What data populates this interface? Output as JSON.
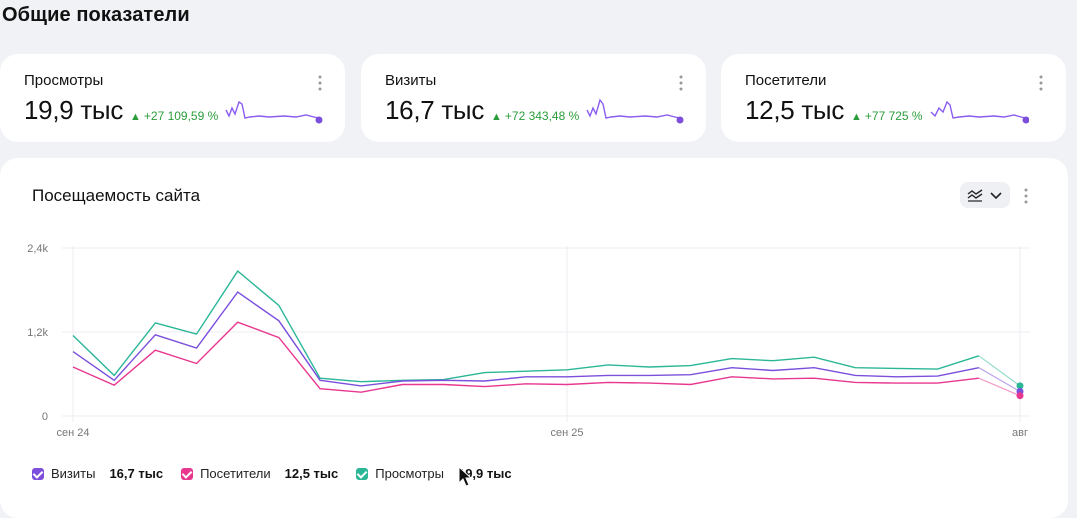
{
  "page": {
    "title": "Общие показатели"
  },
  "kpis": [
    {
      "label": "Просмотры",
      "value": "19,9 тыс",
      "delta": "+27 109,59 %"
    },
    {
      "label": "Визиты",
      "value": "16,7 тыс",
      "delta": "+72 343,48 %"
    },
    {
      "label": "Посетители",
      "value": "12,5 тыс",
      "delta": "+77 725 %"
    }
  ],
  "colors": {
    "visits": "#7b4fdc",
    "visitors": "#e8378f",
    "views": "#2bb796",
    "positive": "#2a9d3a",
    "spark": "#8a5cf0"
  },
  "traffic": {
    "title": "Посещаемость сайта",
    "legend": [
      {
        "name": "Визиты",
        "value": "16,7 тыс",
        "color": "#7b4fdc"
      },
      {
        "name": "Посетители",
        "value": "12,5 тыс",
        "color": "#e8378f"
      },
      {
        "name": "Просмотры",
        "value": "19,9 тыс",
        "color": "#2bb796"
      }
    ]
  },
  "chart_data": {
    "type": "line",
    "title": "Посещаемость сайта",
    "xlabel": "",
    "ylabel": "",
    "x_tick_labels": [
      "сен 24",
      "сен 25",
      "авг"
    ],
    "y_tick_labels": [
      "0",
      "1,2k",
      "2,4k"
    ],
    "ylim": [
      0,
      2400
    ],
    "grid": true,
    "legend_position": "bottom-left",
    "series": [
      {
        "name": "Просмотры",
        "color": "#2bb796",
        "values": [
          1150,
          580,
          1330,
          1170,
          2070,
          1580,
          540,
          490,
          510,
          520,
          620,
          640,
          660,
          730,
          700,
          720,
          820,
          790,
          840,
          690,
          680,
          670,
          860,
          430
        ]
      },
      {
        "name": "Визиты",
        "color": "#7b4fdc",
        "values": [
          920,
          510,
          1160,
          970,
          1770,
          1360,
          510,
          430,
          500,
          510,
          500,
          560,
          560,
          580,
          580,
          590,
          690,
          650,
          690,
          580,
          560,
          570,
          690,
          350
        ]
      },
      {
        "name": "Посетители",
        "color": "#e8378f",
        "values": [
          700,
          440,
          940,
          750,
          1340,
          1120,
          390,
          340,
          450,
          450,
          420,
          460,
          450,
          480,
          470,
          450,
          560,
          530,
          540,
          480,
          470,
          470,
          540,
          290
        ]
      }
    ]
  }
}
